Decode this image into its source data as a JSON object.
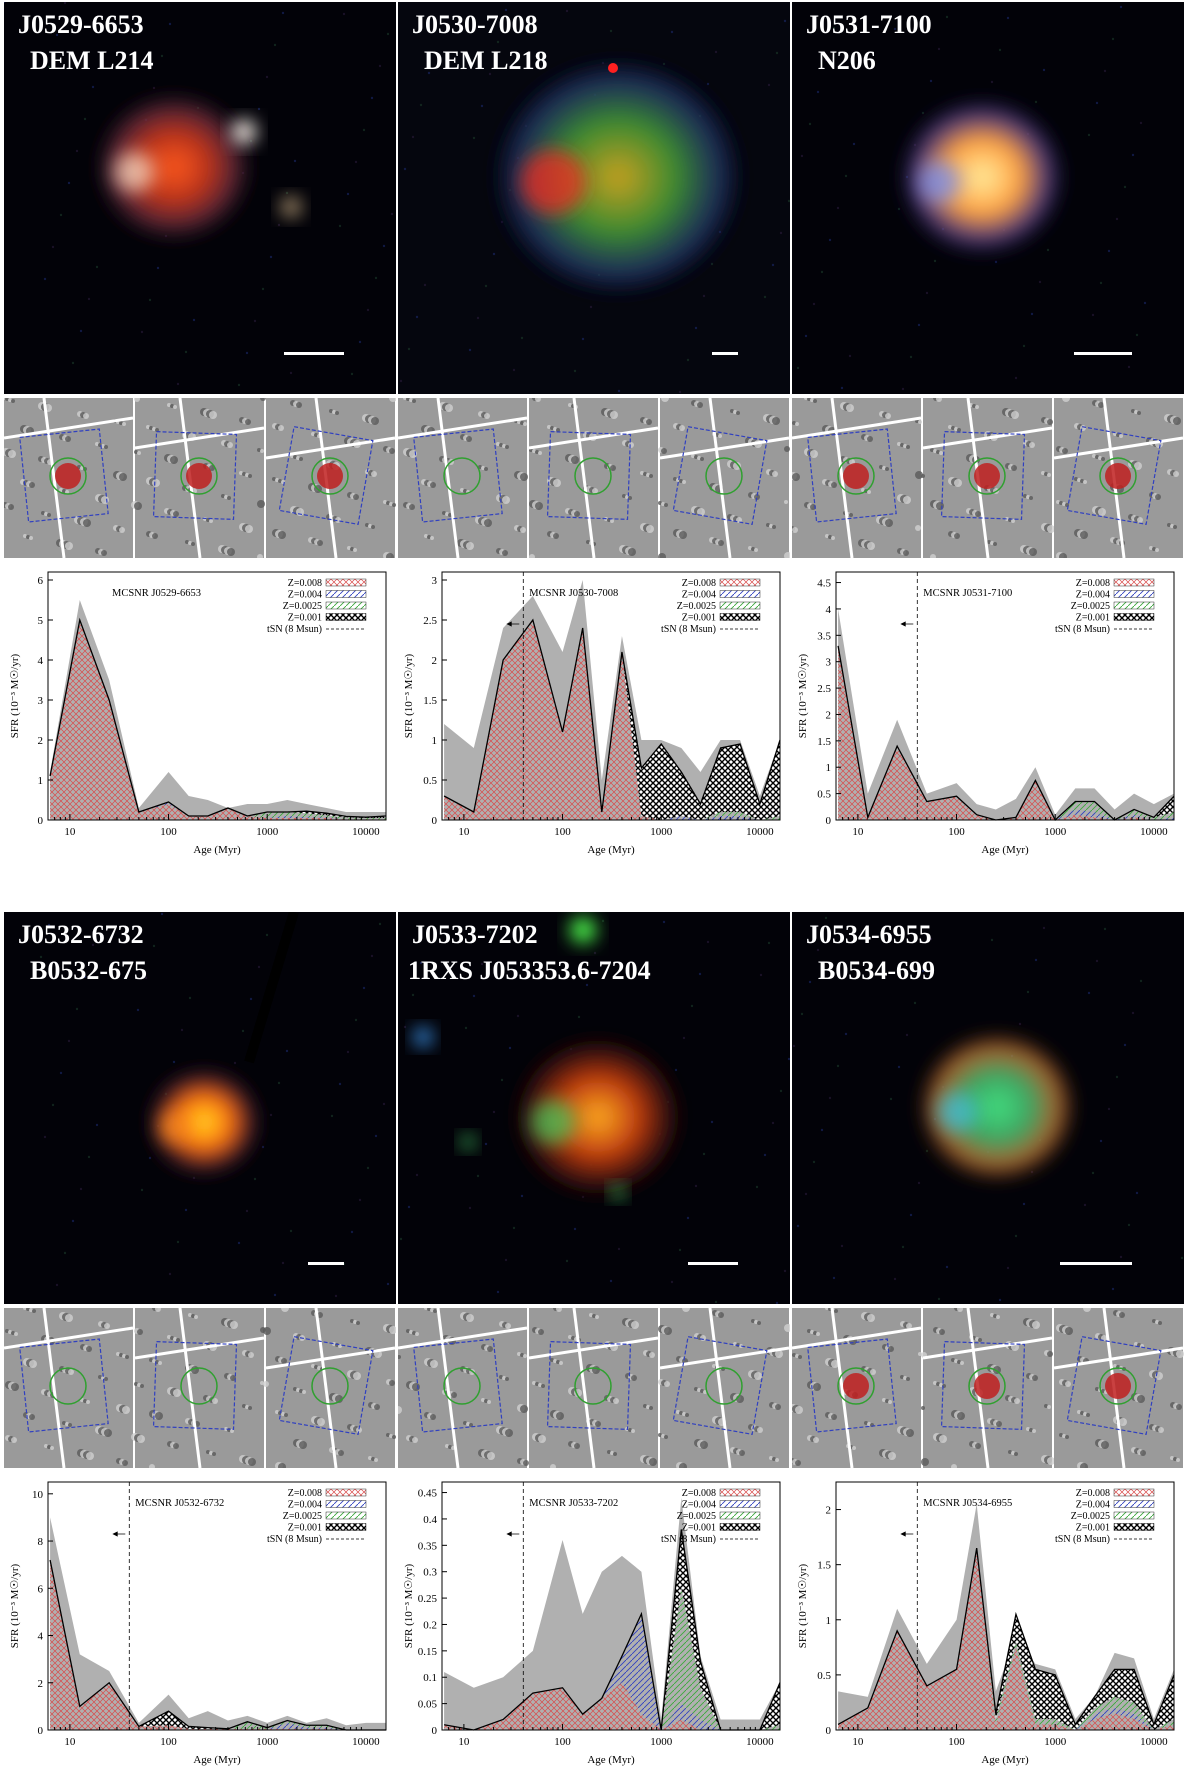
{
  "panels": [
    {
      "id": "J0529-6653",
      "xray": {
        "title": "J0529-6653",
        "subtitle": "DEM L214",
        "tone": "red"
      },
      "chart_data": {
        "type": "area",
        "title": "MCSNR J0529-6653",
        "xlabel": "Age (Myr)",
        "ylabel": "SFR (10⁻³ M☉/yr)",
        "xscale": "log",
        "xlim": [
          6,
          16000
        ],
        "ylim": [
          0,
          6.2
        ],
        "yticks": [
          0,
          1,
          2,
          3,
          4,
          5,
          6
        ],
        "xticks": [
          10,
          100,
          1000,
          10000
        ],
        "tsn": null,
        "x": [
          6.3,
          12.6,
          25,
          50,
          100,
          160,
          250,
          400,
          630,
          1000,
          1600,
          2500,
          4000,
          6300,
          10000,
          16000
        ],
        "upper": [
          1.2,
          5.5,
          3.5,
          0.3,
          1.2,
          0.6,
          0.5,
          0.3,
          0.4,
          0.4,
          0.5,
          0.4,
          0.3,
          0.2,
          0.2,
          0.2
        ],
        "series": [
          {
            "name": "Z=0.008",
            "values": [
              1.1,
              5.0,
              3.0,
              0.2,
              0.4,
              0.1,
              0.1,
              0.3,
              0.1,
              0.05,
              0.05,
              0.05,
              0.05,
              0.02,
              0.02,
              0.02
            ]
          },
          {
            "name": "Z=0.004",
            "values": [
              0,
              0,
              0,
              0,
              0.05,
              0,
              0,
              0,
              0,
              0,
              0.05,
              0.02,
              0.02,
              0,
              0,
              0
            ]
          },
          {
            "name": "Z=0.0025",
            "values": [
              0,
              0,
              0,
              0,
              0,
              0,
              0,
              0,
              0,
              0.15,
              0.1,
              0.1,
              0.05,
              0.05,
              0.03,
              0.03
            ]
          },
          {
            "name": "Z=0.001",
            "values": [
              0,
              0,
              0,
              0,
              0,
              0,
              0,
              0,
              0,
              0,
              0,
              0.05,
              0.05,
              0.02,
              0.02,
              0.05
            ]
          }
        ],
        "legend": [
          "Z=0.008",
          "Z=0.004",
          "Z=0.0025",
          "Z=0.001",
          "tSN (8 Msun)"
        ]
      }
    },
    {
      "id": "J0530-7008",
      "xray": {
        "title": "J0530-7008",
        "subtitle": "DEM L218",
        "tone": "mixed"
      },
      "chart_data": {
        "type": "area",
        "title": "MCSNR J0530-7008",
        "xlabel": "Age (Myr)",
        "ylabel": "SFR (10⁻³ M☉/yr)",
        "xscale": "log",
        "xlim": [
          6,
          16000
        ],
        "ylim": [
          0,
          3.1
        ],
        "yticks": [
          0,
          0.5,
          1,
          1.5,
          2,
          2.5,
          3
        ],
        "xticks": [
          10,
          100,
          1000,
          10000
        ],
        "tsn": 40,
        "x": [
          6.3,
          12.6,
          25,
          50,
          100,
          160,
          250,
          400,
          630,
          1000,
          1600,
          2500,
          4000,
          6300,
          10000,
          16000
        ],
        "upper": [
          1.2,
          0.9,
          2.4,
          2.8,
          2.1,
          3.0,
          0.5,
          2.3,
          1.0,
          1.0,
          0.9,
          0.6,
          1.0,
          1.0,
          0.3,
          1.0
        ],
        "series": [
          {
            "name": "Z=0.008",
            "values": [
              0.3,
              0.1,
              2.0,
              2.5,
              1.1,
              2.4,
              0.1,
              2.1,
              0.05,
              0,
              0,
              0,
              0,
              0,
              0,
              0
            ]
          },
          {
            "name": "Z=0.004",
            "values": [
              0,
              0,
              0,
              0,
              0,
              0,
              0,
              0,
              0,
              0,
              0.05,
              0,
              0.05,
              0.05,
              0,
              0
            ]
          },
          {
            "name": "Z=0.0025",
            "values": [
              0,
              0,
              0,
              0,
              0,
              0,
              0,
              0,
              0,
              0,
              0,
              0,
              0.05,
              0.05,
              0,
              0.05
            ]
          },
          {
            "name": "Z=0.001",
            "values": [
              0,
              0,
              0,
              0,
              0,
              0,
              0,
              0,
              0.6,
              0.95,
              0.55,
              0.2,
              0.8,
              0.85,
              0.2,
              0.95
            ]
          }
        ],
        "legend": [
          "Z=0.008",
          "Z=0.004",
          "Z=0.0025",
          "Z=0.001",
          "tSN (8 Msun)"
        ]
      }
    },
    {
      "id": "J0531-7100",
      "xray": {
        "title": "J0531-7100",
        "subtitle": "N206",
        "tone": "yellow"
      },
      "chart_data": {
        "type": "area",
        "title": "MCSNR J0531-7100",
        "xlabel": "Age (Myr)",
        "ylabel": "SFR (10⁻³ M☉/yr)",
        "xscale": "log",
        "xlim": [
          6,
          16000
        ],
        "ylim": [
          0,
          4.7
        ],
        "yticks": [
          0,
          0.5,
          1,
          1.5,
          2,
          2.5,
          3,
          3.5,
          4,
          4.5
        ],
        "xticks": [
          10,
          100,
          1000,
          10000
        ],
        "tsn": 40,
        "x": [
          6.3,
          12.6,
          25,
          50,
          100,
          160,
          250,
          400,
          630,
          1000,
          1600,
          2500,
          4000,
          6300,
          10000,
          16000
        ],
        "upper": [
          4.0,
          0.5,
          1.9,
          0.5,
          0.7,
          0.3,
          0.2,
          0.4,
          1.0,
          0.1,
          0.6,
          0.6,
          0.2,
          0.5,
          0.3,
          0.5
        ],
        "series": [
          {
            "name": "Z=0.008",
            "values": [
              3.3,
              0.05,
              1.4,
              0.35,
              0.45,
              0.1,
              0,
              0.05,
              0.75,
              0,
              0.1,
              0.05,
              0,
              0.05,
              0,
              0
            ]
          },
          {
            "name": "Z=0.004",
            "values": [
              0,
              0,
              0,
              0,
              0,
              0,
              0,
              0,
              0,
              0,
              0.1,
              0.1,
              0,
              0.05,
              0,
              0.05
            ]
          },
          {
            "name": "Z=0.0025",
            "values": [
              0,
              0,
              0,
              0,
              0,
              0,
              0,
              0,
              0,
              0,
              0.15,
              0.2,
              0,
              0.1,
              0.05,
              0.1
            ]
          },
          {
            "name": "Z=0.001",
            "values": [
              0,
              0,
              0,
              0,
              0,
              0,
              0,
              0,
              0,
              0,
              0,
              0,
              0,
              0,
              0,
              0.3
            ]
          }
        ],
        "legend": [
          "Z=0.008",
          "Z=0.004",
          "Z=0.0025",
          "Z=0.001",
          "tSN (8 Msun)"
        ]
      }
    },
    {
      "id": "J0532-6732",
      "xray": {
        "title": "J0532-6732",
        "subtitle": "B0532-675",
        "tone": "orange"
      },
      "chart_data": {
        "type": "area",
        "title": "MCSNR J0532-6732",
        "xlabel": "Age (Myr)",
        "ylabel": "SFR (10⁻³ M☉/yr)",
        "xscale": "log",
        "xlim": [
          6,
          16000
        ],
        "ylim": [
          0,
          10.5
        ],
        "yticks": [
          0,
          2,
          4,
          6,
          8,
          10
        ],
        "xticks": [
          10,
          100,
          1000,
          10000
        ],
        "tsn": 40,
        "x": [
          6.3,
          12.6,
          25,
          50,
          100,
          160,
          250,
          400,
          630,
          1000,
          1600,
          2500,
          4000,
          6300,
          10000,
          16000
        ],
        "upper": [
          9.0,
          3.2,
          2.5,
          0.3,
          1.5,
          0.5,
          0.8,
          0.4,
          0.6,
          0.3,
          0.6,
          0.3,
          0.5,
          0.2,
          0.3,
          0.3
        ],
        "series": [
          {
            "name": "Z=0.008",
            "values": [
              7.2,
              1.0,
              2.0,
              0.15,
              0.2,
              0.05,
              0.05,
              0.05,
              0.05,
              0.05,
              0.05,
              0.05,
              0.05,
              0,
              0,
              0
            ]
          },
          {
            "name": "Z=0.004",
            "values": [
              0,
              0,
              0,
              0,
              0,
              0,
              0,
              0,
              0,
              0,
              0.25,
              0.05,
              0.05,
              0,
              0,
              0
            ]
          },
          {
            "name": "Z=0.0025",
            "values": [
              0,
              0,
              0,
              0,
              0,
              0,
              0,
              0,
              0.3,
              0.05,
              0.1,
              0.1,
              0.1,
              0,
              0,
              0
            ]
          },
          {
            "name": "Z=0.001",
            "values": [
              0,
              0,
              0,
              0,
              0.6,
              0.1,
              0.05,
              0,
              0,
              0,
              0,
              0,
              0,
              0,
              0,
              0
            ]
          }
        ],
        "legend": [
          "Z=0.008",
          "Z=0.004",
          "Z=0.0025",
          "Z=0.001",
          "tSN (8 Msun)"
        ]
      }
    },
    {
      "id": "J0533-7202",
      "xray": {
        "title": "J0533-7202",
        "subtitle": "1RXS J053353.6-7204",
        "tone": "orange-ring"
      },
      "chart_data": {
        "type": "area",
        "title": "MCSNR J0533-7202",
        "xlabel": "Age (Myr)",
        "ylabel": "SFR (10⁻³ M☉/yr)",
        "xscale": "log",
        "xlim": [
          6,
          16000
        ],
        "ylim": [
          0,
          0.47
        ],
        "yticks": [
          0,
          0.05,
          0.1,
          0.15,
          0.2,
          0.25,
          0.3,
          0.35,
          0.4,
          0.45
        ],
        "xticks": [
          10,
          100,
          1000,
          10000
        ],
        "tsn": 40,
        "x": [
          6.3,
          12.6,
          25,
          50,
          100,
          160,
          250,
          400,
          630,
          1000,
          1600,
          2500,
          4000,
          6300,
          10000,
          16000
        ],
        "upper": [
          0.11,
          0.08,
          0.1,
          0.15,
          0.36,
          0.22,
          0.3,
          0.33,
          0.3,
          0.02,
          0.44,
          0.14,
          0.02,
          0.02,
          0.02,
          0.09
        ],
        "series": [
          {
            "name": "Z=0.008",
            "values": [
              0.01,
              0,
              0.02,
              0.07,
              0.08,
              0.03,
              0.06,
              0.09,
              0.03,
              0,
              0.02,
              0,
              0,
              0,
              0,
              0
            ]
          },
          {
            "name": "Z=0.004",
            "values": [
              0,
              0,
              0,
              0,
              0,
              0,
              0,
              0.05,
              0.19,
              0,
              0.03,
              0.02,
              0,
              0,
              0,
              0
            ]
          },
          {
            "name": "Z=0.0025",
            "values": [
              0,
              0,
              0,
              0,
              0,
              0,
              0,
              0,
              0,
              0,
              0.22,
              0.06,
              0,
              0,
              0,
              0.01
            ]
          },
          {
            "name": "Z=0.001",
            "values": [
              0,
              0,
              0,
              0,
              0,
              0,
              0,
              0,
              0,
              0,
              0.11,
              0.05,
              0,
              0,
              0,
              0.08
            ]
          }
        ],
        "legend": [
          "Z=0.008",
          "Z=0.004",
          "Z=0.0025",
          "Z=0.001",
          "tSN (8 Msun)"
        ]
      }
    },
    {
      "id": "J0534-6955",
      "xray": {
        "title": "J0534-6955",
        "subtitle": "B0534-699",
        "tone": "green"
      },
      "chart_data": {
        "type": "area",
        "title": "MCSNR J0534-6955",
        "xlabel": "Age (Myr)",
        "ylabel": "SFR (10⁻³ M☉/yr)",
        "xscale": "log",
        "xlim": [
          6,
          16000
        ],
        "ylim": [
          0,
          2.25
        ],
        "yticks": [
          0,
          0.5,
          1,
          1.5,
          2
        ],
        "xticks": [
          10,
          100,
          1000,
          10000
        ],
        "tsn": 40,
        "x": [
          6.3,
          12.6,
          25,
          50,
          100,
          160,
          250,
          400,
          630,
          1000,
          1600,
          2500,
          4000,
          6300,
          10000,
          16000
        ],
        "upper": [
          0.35,
          0.3,
          1.1,
          0.6,
          1.0,
          2.05,
          0.35,
          0.85,
          0.6,
          0.55,
          0.1,
          0.3,
          0.7,
          0.65,
          0.1,
          0.55
        ],
        "series": [
          {
            "name": "Z=0.008",
            "values": [
              0.05,
              0.2,
              0.9,
              0.4,
              0.55,
              1.65,
              0.05,
              0.75,
              0.05,
              0.05,
              0,
              0.1,
              0.15,
              0.1,
              0,
              0.05
            ]
          },
          {
            "name": "Z=0.004",
            "values": [
              0,
              0,
              0,
              0,
              0,
              0,
              0,
              0,
              0,
              0,
              0,
              0.05,
              0.05,
              0.05,
              0,
              0
            ]
          },
          {
            "name": "Z=0.0025",
            "values": [
              0,
              0,
              0,
              0,
              0,
              0,
              0.05,
              0.05,
              0.05,
              0.05,
              0,
              0.05,
              0.1,
              0.1,
              0,
              0.05
            ]
          },
          {
            "name": "Z=0.001",
            "values": [
              0,
              0,
              0,
              0,
              0,
              0,
              0.05,
              0.25,
              0.45,
              0.4,
              0.05,
              0.1,
              0.25,
              0.3,
              0.05,
              0.4
            ]
          }
        ],
        "legend": [
          "Z=0.008",
          "Z=0.004",
          "Z=0.0025",
          "Z=0.001",
          "tSN (8 Msun)"
        ]
      }
    }
  ],
  "colors": {
    "z008": "#d94a4a",
    "z004": "#3040c0",
    "z0025": "#3aa83a",
    "z001": "#000000",
    "upper": "#b0b0b0",
    "thumb_bg": "#9a9a9a"
  }
}
